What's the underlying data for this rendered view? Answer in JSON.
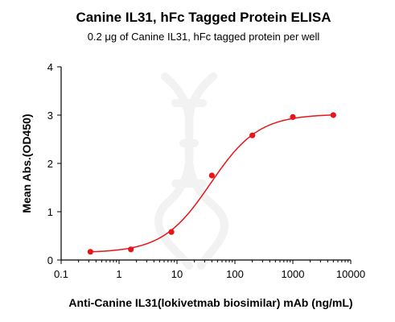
{
  "chart_data": {
    "type": "scatter",
    "title": "Canine IL31, hFc Tagged Protein ELISA",
    "subtitle": "0.2 μg of Canine IL31, hFc tagged protein per well",
    "xlabel": "Anti-Canine IL31(lokivetmab biosimilar) mAb (ng/mL)",
    "ylabel": "Mean Abs.(OD450)",
    "xscale": "log",
    "xlim": [
      0.1,
      10000
    ],
    "ylim": [
      0,
      4
    ],
    "x_ticks": [
      "0.1",
      "1",
      "10",
      "100",
      "1000",
      "10000"
    ],
    "y_ticks": [
      "0",
      "1",
      "2",
      "3",
      "4"
    ],
    "grid": false,
    "legend": "none",
    "series": [
      {
        "x": [
          0.32,
          1.6,
          8,
          40,
          200,
          1000,
          5000
        ],
        "y": [
          0.17,
          0.22,
          0.58,
          1.75,
          2.58,
          2.96,
          3.0
        ],
        "fit": "4PL sigmoid",
        "color": "#e8141a"
      }
    ]
  }
}
